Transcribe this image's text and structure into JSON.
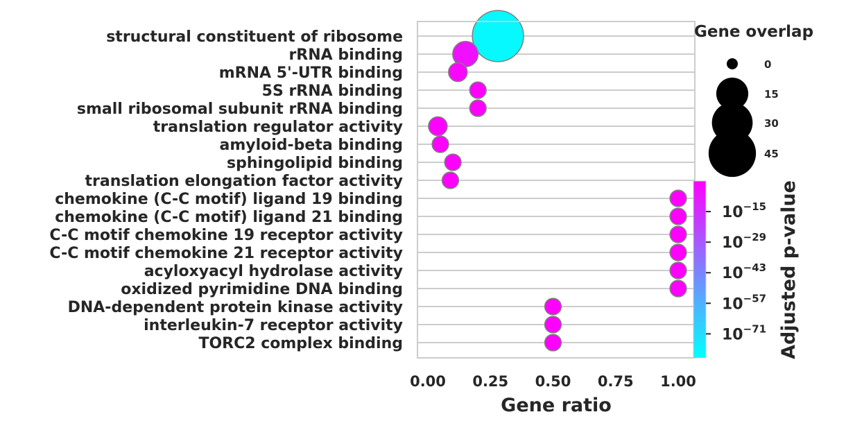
{
  "chart_data": {
    "type": "scatter",
    "title": "",
    "xlabel": "Gene ratio",
    "ylabel": "",
    "xlim": [
      -0.02,
      1.07
    ],
    "xticks": [
      0.0,
      0.25,
      0.5,
      0.75,
      1.0
    ],
    "xtick_labels": [
      "0.00",
      "0.25",
      "0.50",
      "0.75",
      "1.00"
    ],
    "grid": true,
    "categories": [
      "structural constituent of ribosome",
      "rRNA binding",
      "mRNA 5'-UTR binding",
      "5S rRNA binding",
      "small ribosomal subunit rRNA binding",
      "translation regulator activity",
      "amyloid-beta binding",
      "sphingolipid binding",
      "translation elongation factor activity",
      "chemokine (C-C motif) ligand 19 binding",
      "chemokine (C-C motif) ligand 21 binding",
      "C-C motif chemokine 19 receptor activity",
      "C-C motif chemokine 21 receptor activity",
      "acyloxyacyl hydrolase activity",
      "oxidized pyrimidine DNA binding",
      "DNA-dependent protein kinase activity",
      "interleukin-7 receptor activity",
      "TORC2 complex binding"
    ],
    "gene_ratio": [
      0.28,
      0.15,
      0.12,
      0.2,
      0.2,
      0.04,
      0.05,
      0.1,
      0.09,
      1.0,
      1.0,
      1.0,
      1.0,
      1.0,
      1.0,
      0.5,
      0.5,
      0.5
    ],
    "gene_overlap": [
      55,
      7,
      2,
      1,
      1,
      2,
      1,
      1,
      1,
      1,
      1,
      1,
      1,
      1,
      1,
      1,
      1,
      1
    ],
    "adjusted_p_value_log10": [
      -80,
      -6,
      -3,
      -1,
      -1,
      -2,
      -2,
      -1,
      -1,
      -1,
      -1,
      -1,
      -1,
      -1,
      -1,
      -1,
      -1,
      -1
    ],
    "size_legend": {
      "title": "Gene overlap",
      "values": [
        0,
        15,
        30,
        45
      ],
      "labels": [
        "0",
        "15",
        "30",
        "45"
      ]
    },
    "colorbar": {
      "label": "Adjusted p-value",
      "colormap": "cool",
      "range_log10": [
        -82,
        -1
      ],
      "tick_exponents": [
        "−15",
        "−29",
        "−43",
        "−57",
        "−71"
      ],
      "tick_values_log10": [
        -15,
        -29,
        -43,
        -57,
        -71
      ],
      "tick_base": "10"
    }
  },
  "colors": {
    "cmap_low": "#00ffff",
    "cmap_high": "#ff00ff",
    "marker_edge": "#808080",
    "grid": "#cccccc",
    "spine": "#cccccc",
    "text": "#262626"
  }
}
